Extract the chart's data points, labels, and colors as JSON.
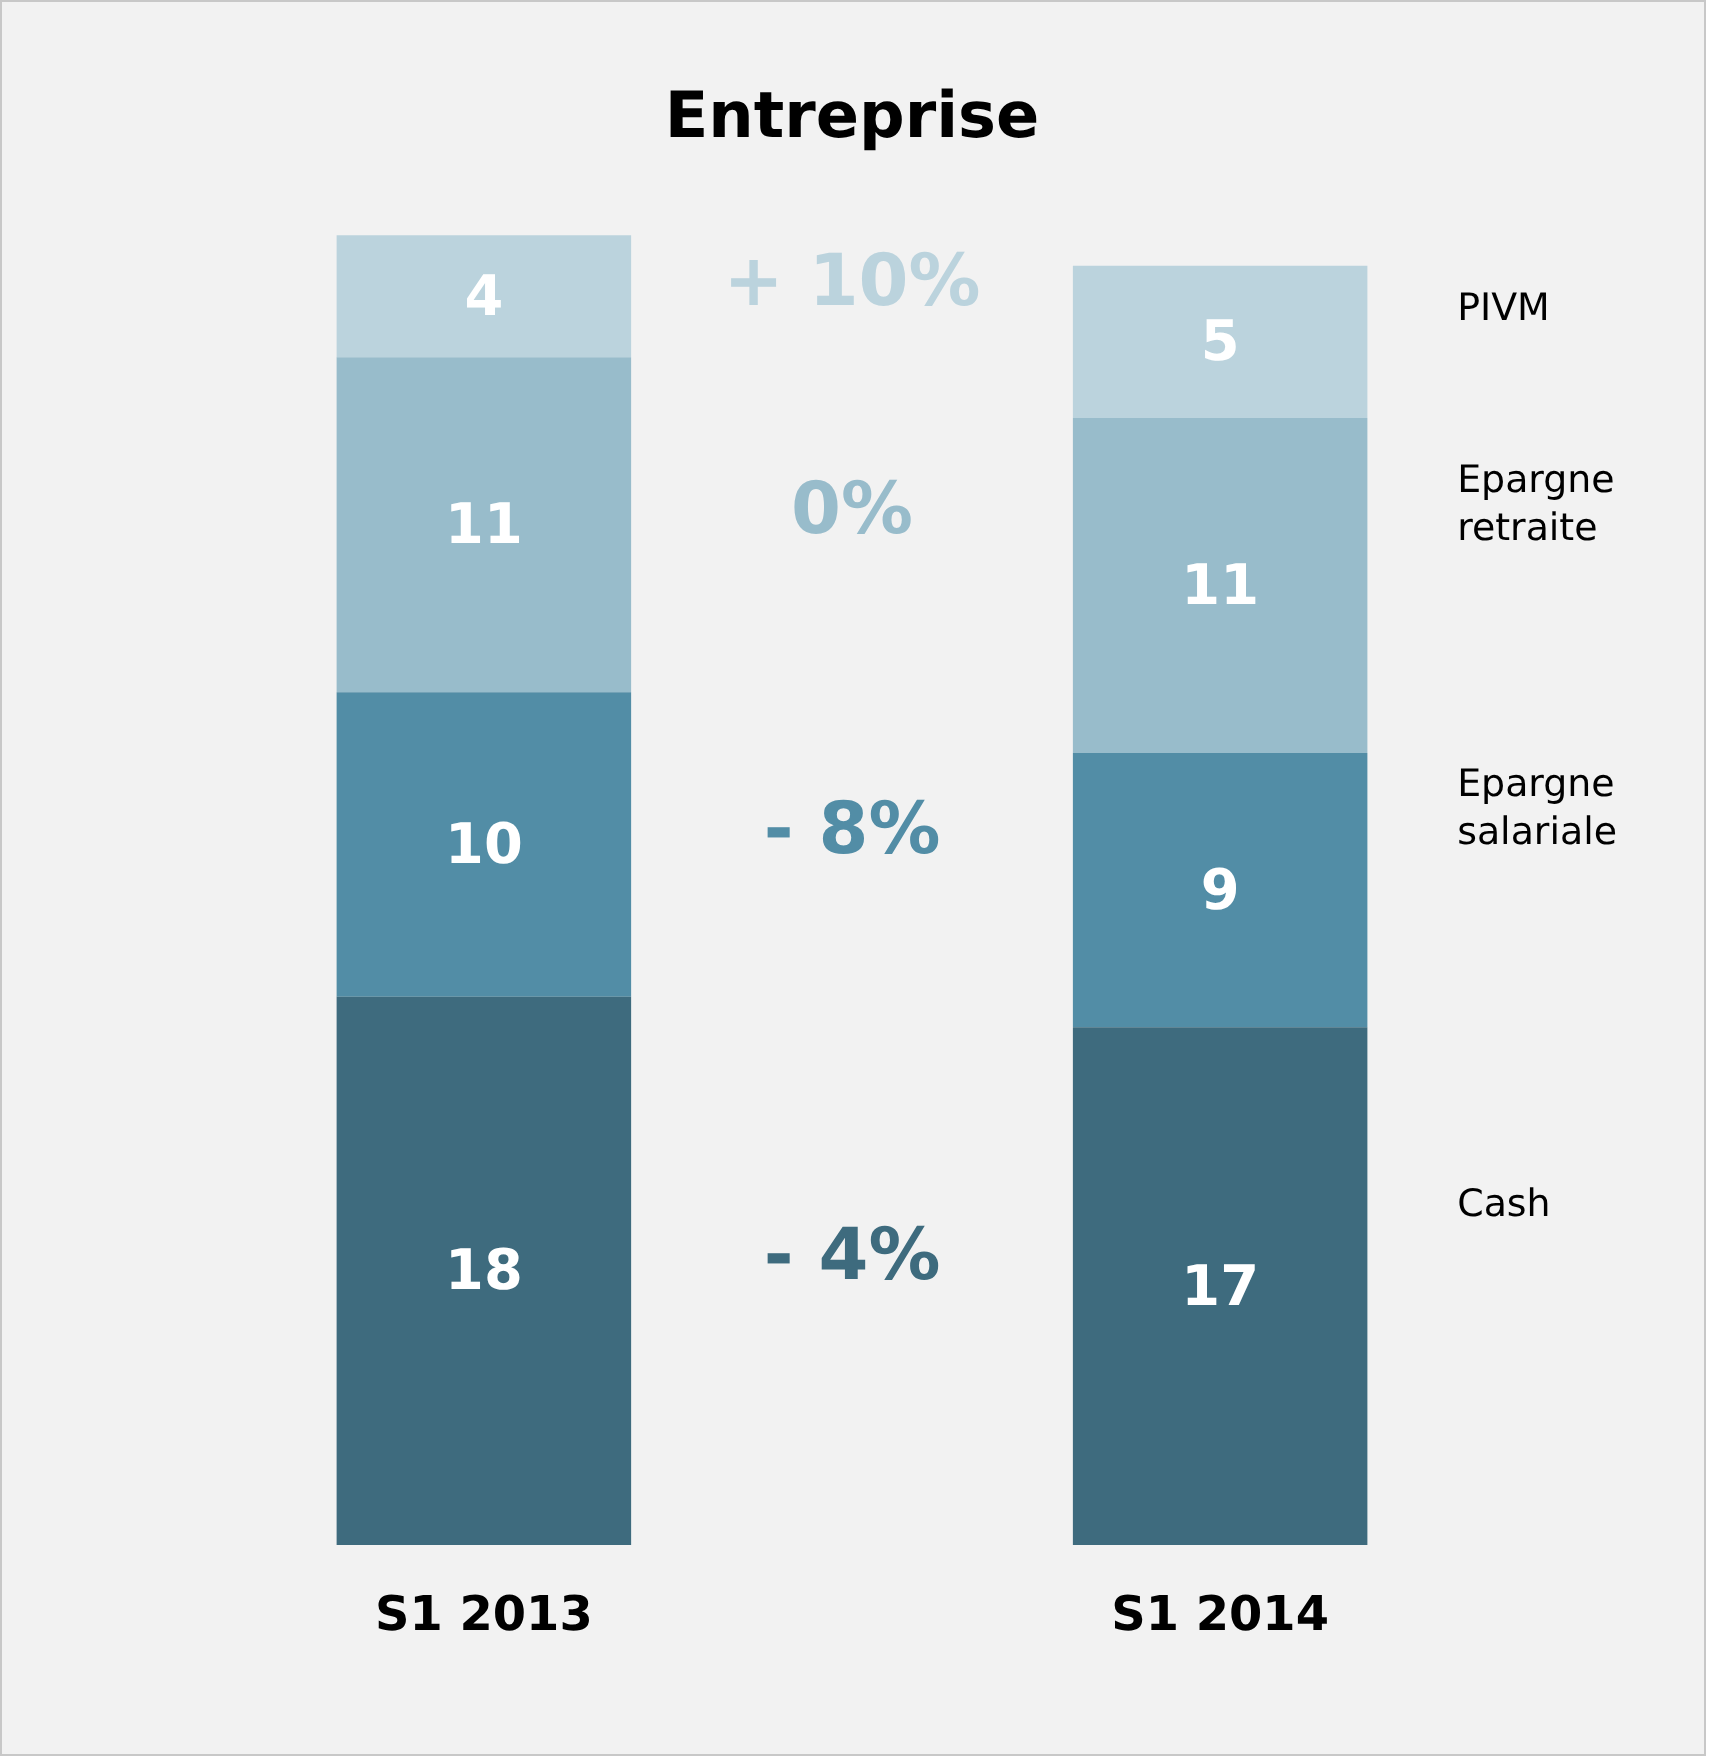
{
  "chart_data": {
    "type": "bar",
    "title": "Entreprise",
    "categories": [
      "S1 2013",
      "S1 2014"
    ],
    "stacked": true,
    "data_labels": true,
    "legend": false,
    "grid": false,
    "series": [
      {
        "name": "Cash",
        "color": "#3e6b7e",
        "values": [
          18,
          17
        ]
      },
      {
        "name": "Epargne salariale",
        "color": "#528da6",
        "values": [
          10,
          9
        ]
      },
      {
        "name": "Epargne retraite",
        "color": "#98bccb",
        "values": [
          11,
          11
        ]
      },
      {
        "name": "PIVM",
        "color": "#bbd3dd",
        "values": [
          4,
          5
        ]
      }
    ],
    "annotations": [
      "- 4%",
      "- 8%",
      "0%",
      "+ 10%"
    ]
  }
}
